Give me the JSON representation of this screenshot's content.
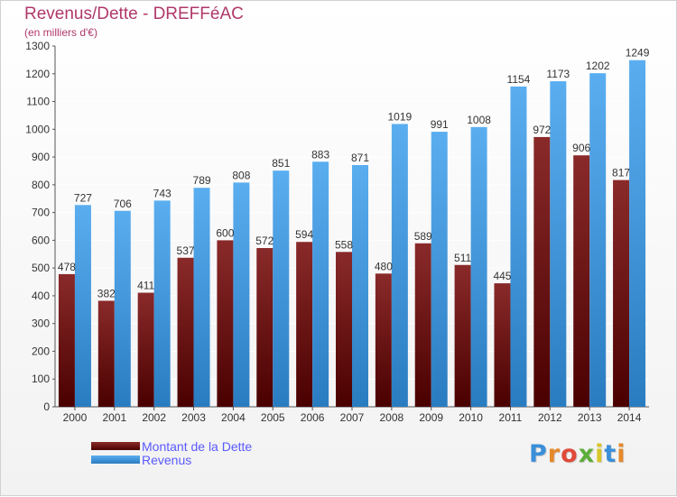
{
  "title": "Revenus/Dette - DREFFéAC",
  "subtitle": "(en milliers d'€)",
  "chart_data": {
    "type": "bar",
    "categories": [
      "2000",
      "2001",
      "2002",
      "2003",
      "2004",
      "2005",
      "2006",
      "2007",
      "2008",
      "2009",
      "2010",
      "2011",
      "2012",
      "2013",
      "2014"
    ],
    "series": [
      {
        "name": "Montant de la Dette",
        "color": "#7a1a1a",
        "values": [
          478,
          382,
          411,
          537,
          600,
          572,
          594,
          558,
          480,
          589,
          511,
          445,
          972,
          906,
          817
        ]
      },
      {
        "name": "Revenus",
        "color": "#4aa3e6",
        "values": [
          727,
          706,
          743,
          789,
          808,
          851,
          883,
          871,
          1019,
          991,
          1008,
          1154,
          1173,
          1202,
          1249
        ]
      }
    ],
    "yticks": [
      0,
      100,
      200,
      300,
      400,
      500,
      600,
      700,
      800,
      900,
      1000,
      1100,
      1200,
      1300
    ],
    "ylim": [
      0,
      1300
    ],
    "grid": true,
    "legend_position": "bottom-left"
  },
  "legend": {
    "items": [
      {
        "label": "Montant de la Dette",
        "color": "#6a1010"
      },
      {
        "label": "Revenus",
        "color": "#4aa3e6"
      }
    ]
  },
  "logo": {
    "letters": [
      "P",
      "r",
      "o",
      "x",
      "i",
      "t",
      "i"
    ],
    "colors": [
      "#3b8fd8",
      "#e6892a",
      "#e04a3a",
      "#5cae3a",
      "#d8c52a",
      "#3b8fd8",
      "#e6892a"
    ]
  }
}
